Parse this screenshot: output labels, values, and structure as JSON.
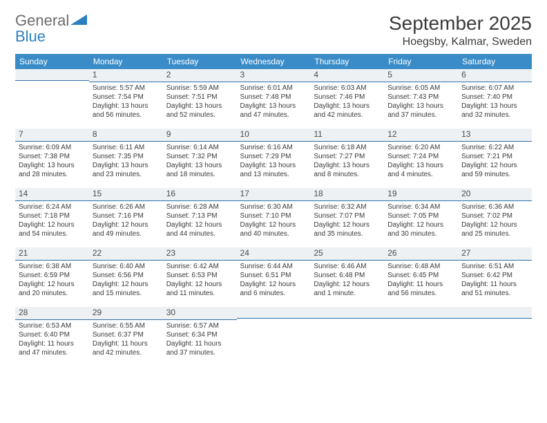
{
  "logo": {
    "text1": "General",
    "text2": "Blue"
  },
  "title": "September 2025",
  "location": "Hoegsby, Kalmar, Sweden",
  "colors": {
    "header_bg": "#3a8cc9",
    "header_text": "#ffffff",
    "daynum_bg": "#eef1f3",
    "daynum_border": "#2d6fa6",
    "text": "#3a3a3a",
    "logo_gray": "#6b6b6b",
    "logo_blue": "#2d7fbf"
  },
  "fonts": {
    "title_pt": 28,
    "location_pt": 16,
    "th_pt": 12,
    "daynum_pt": 12,
    "cell_pt": 10
  },
  "weekdays": [
    "Sunday",
    "Monday",
    "Tuesday",
    "Wednesday",
    "Thursday",
    "Friday",
    "Saturday"
  ],
  "weeks": [
    [
      {
        "empty": true
      },
      {
        "day": "1",
        "sunrise": "Sunrise: 5:57 AM",
        "sunset": "Sunset: 7:54 PM",
        "daylight1": "Daylight: 13 hours",
        "daylight2": "and 56 minutes."
      },
      {
        "day": "2",
        "sunrise": "Sunrise: 5:59 AM",
        "sunset": "Sunset: 7:51 PM",
        "daylight1": "Daylight: 13 hours",
        "daylight2": "and 52 minutes."
      },
      {
        "day": "3",
        "sunrise": "Sunrise: 6:01 AM",
        "sunset": "Sunset: 7:48 PM",
        "daylight1": "Daylight: 13 hours",
        "daylight2": "and 47 minutes."
      },
      {
        "day": "4",
        "sunrise": "Sunrise: 6:03 AM",
        "sunset": "Sunset: 7:46 PM",
        "daylight1": "Daylight: 13 hours",
        "daylight2": "and 42 minutes."
      },
      {
        "day": "5",
        "sunrise": "Sunrise: 6:05 AM",
        "sunset": "Sunset: 7:43 PM",
        "daylight1": "Daylight: 13 hours",
        "daylight2": "and 37 minutes."
      },
      {
        "day": "6",
        "sunrise": "Sunrise: 6:07 AM",
        "sunset": "Sunset: 7:40 PM",
        "daylight1": "Daylight: 13 hours",
        "daylight2": "and 32 minutes."
      }
    ],
    [
      {
        "day": "7",
        "sunrise": "Sunrise: 6:09 AM",
        "sunset": "Sunset: 7:38 PM",
        "daylight1": "Daylight: 13 hours",
        "daylight2": "and 28 minutes."
      },
      {
        "day": "8",
        "sunrise": "Sunrise: 6:11 AM",
        "sunset": "Sunset: 7:35 PM",
        "daylight1": "Daylight: 13 hours",
        "daylight2": "and 23 minutes."
      },
      {
        "day": "9",
        "sunrise": "Sunrise: 6:14 AM",
        "sunset": "Sunset: 7:32 PM",
        "daylight1": "Daylight: 13 hours",
        "daylight2": "and 18 minutes."
      },
      {
        "day": "10",
        "sunrise": "Sunrise: 6:16 AM",
        "sunset": "Sunset: 7:29 PM",
        "daylight1": "Daylight: 13 hours",
        "daylight2": "and 13 minutes."
      },
      {
        "day": "11",
        "sunrise": "Sunrise: 6:18 AM",
        "sunset": "Sunset: 7:27 PM",
        "daylight1": "Daylight: 13 hours",
        "daylight2": "and 8 minutes."
      },
      {
        "day": "12",
        "sunrise": "Sunrise: 6:20 AM",
        "sunset": "Sunset: 7:24 PM",
        "daylight1": "Daylight: 13 hours",
        "daylight2": "and 4 minutes."
      },
      {
        "day": "13",
        "sunrise": "Sunrise: 6:22 AM",
        "sunset": "Sunset: 7:21 PM",
        "daylight1": "Daylight: 12 hours",
        "daylight2": "and 59 minutes."
      }
    ],
    [
      {
        "day": "14",
        "sunrise": "Sunrise: 6:24 AM",
        "sunset": "Sunset: 7:18 PM",
        "daylight1": "Daylight: 12 hours",
        "daylight2": "and 54 minutes."
      },
      {
        "day": "15",
        "sunrise": "Sunrise: 6:26 AM",
        "sunset": "Sunset: 7:16 PM",
        "daylight1": "Daylight: 12 hours",
        "daylight2": "and 49 minutes."
      },
      {
        "day": "16",
        "sunrise": "Sunrise: 6:28 AM",
        "sunset": "Sunset: 7:13 PM",
        "daylight1": "Daylight: 12 hours",
        "daylight2": "and 44 minutes."
      },
      {
        "day": "17",
        "sunrise": "Sunrise: 6:30 AM",
        "sunset": "Sunset: 7:10 PM",
        "daylight1": "Daylight: 12 hours",
        "daylight2": "and 40 minutes."
      },
      {
        "day": "18",
        "sunrise": "Sunrise: 6:32 AM",
        "sunset": "Sunset: 7:07 PM",
        "daylight1": "Daylight: 12 hours",
        "daylight2": "and 35 minutes."
      },
      {
        "day": "19",
        "sunrise": "Sunrise: 6:34 AM",
        "sunset": "Sunset: 7:05 PM",
        "daylight1": "Daylight: 12 hours",
        "daylight2": "and 30 minutes."
      },
      {
        "day": "20",
        "sunrise": "Sunrise: 6:36 AM",
        "sunset": "Sunset: 7:02 PM",
        "daylight1": "Daylight: 12 hours",
        "daylight2": "and 25 minutes."
      }
    ],
    [
      {
        "day": "21",
        "sunrise": "Sunrise: 6:38 AM",
        "sunset": "Sunset: 6:59 PM",
        "daylight1": "Daylight: 12 hours",
        "daylight2": "and 20 minutes."
      },
      {
        "day": "22",
        "sunrise": "Sunrise: 6:40 AM",
        "sunset": "Sunset: 6:56 PM",
        "daylight1": "Daylight: 12 hours",
        "daylight2": "and 15 minutes."
      },
      {
        "day": "23",
        "sunrise": "Sunrise: 6:42 AM",
        "sunset": "Sunset: 6:53 PM",
        "daylight1": "Daylight: 12 hours",
        "daylight2": "and 11 minutes."
      },
      {
        "day": "24",
        "sunrise": "Sunrise: 6:44 AM",
        "sunset": "Sunset: 6:51 PM",
        "daylight1": "Daylight: 12 hours",
        "daylight2": "and 6 minutes."
      },
      {
        "day": "25",
        "sunrise": "Sunrise: 6:46 AM",
        "sunset": "Sunset: 6:48 PM",
        "daylight1": "Daylight: 12 hours",
        "daylight2": "and 1 minute."
      },
      {
        "day": "26",
        "sunrise": "Sunrise: 6:48 AM",
        "sunset": "Sunset: 6:45 PM",
        "daylight1": "Daylight: 11 hours",
        "daylight2": "and 56 minutes."
      },
      {
        "day": "27",
        "sunrise": "Sunrise: 6:51 AM",
        "sunset": "Sunset: 6:42 PM",
        "daylight1": "Daylight: 11 hours",
        "daylight2": "and 51 minutes."
      }
    ],
    [
      {
        "day": "28",
        "sunrise": "Sunrise: 6:53 AM",
        "sunset": "Sunset: 6:40 PM",
        "daylight1": "Daylight: 11 hours",
        "daylight2": "and 47 minutes."
      },
      {
        "day": "29",
        "sunrise": "Sunrise: 6:55 AM",
        "sunset": "Sunset: 6:37 PM",
        "daylight1": "Daylight: 11 hours",
        "daylight2": "and 42 minutes."
      },
      {
        "day": "30",
        "sunrise": "Sunrise: 6:57 AM",
        "sunset": "Sunset: 6:34 PM",
        "daylight1": "Daylight: 11 hours",
        "daylight2": "and 37 minutes."
      },
      {
        "empty": true
      },
      {
        "empty": true
      },
      {
        "empty": true
      },
      {
        "empty": true
      }
    ]
  ]
}
